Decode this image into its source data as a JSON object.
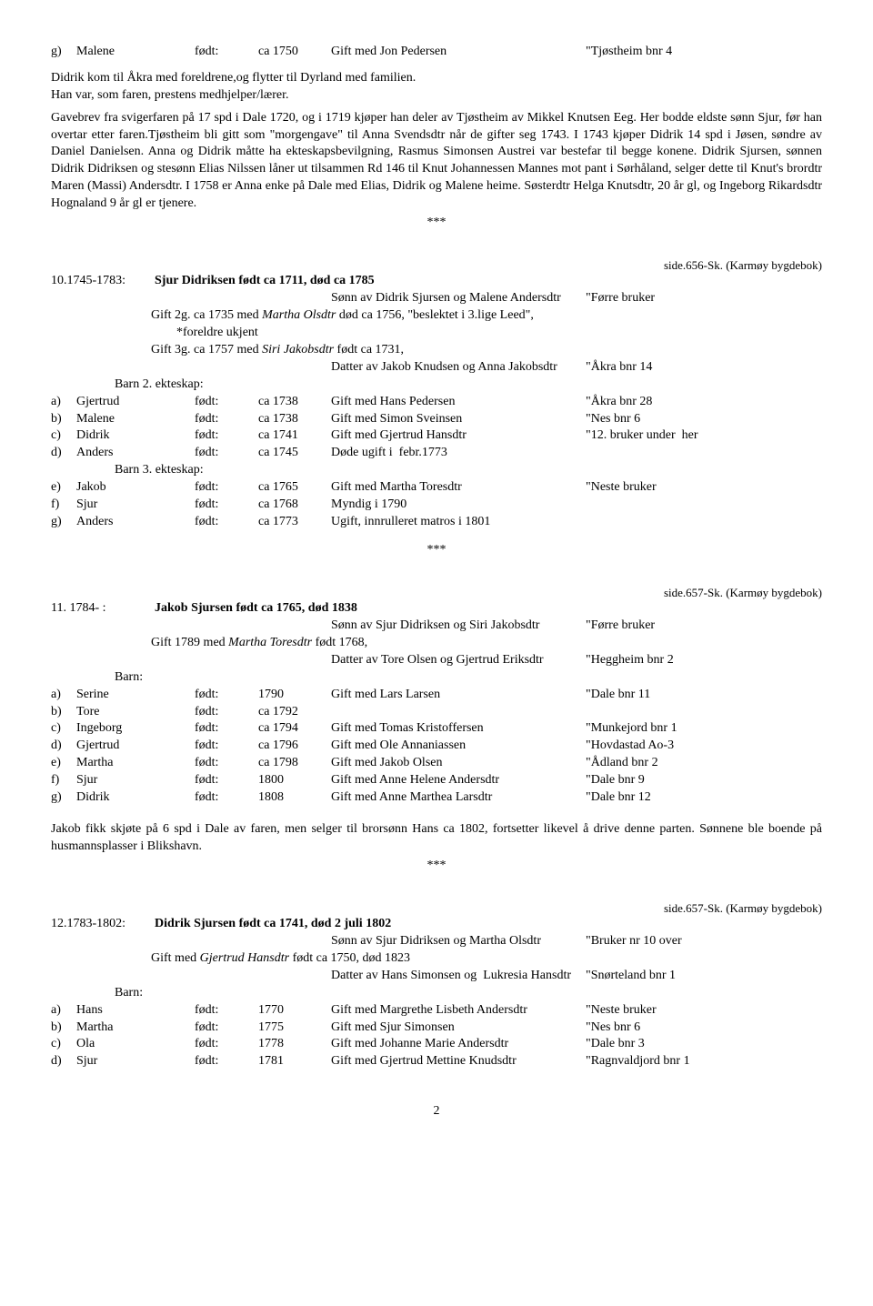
{
  "entry_g_top": {
    "letter": "g)",
    "name": "Malene",
    "born_lbl": "født:",
    "born": "ca 1750",
    "marriage": "Gift med Jon Pedersen",
    "place": "\"Tjøstheim bnr 4"
  },
  "para1_a": "Didrik kom til Åkra med foreldrene,og flytter til Dyrland med familien.",
  "para1_b": "Han var, som faren, prestens medhjelper/lærer.",
  "para2": "Gavebrev fra svigerfaren på 17 spd i Dale 1720, og i 1719 kjøper han deler av Tjøstheim av Mikkel Knutsen Eeg. Her bodde eldste sønn Sjur, før han overtar etter faren.Tjøstheim bli gitt som \"morgengave\" til Anna Svendsdtr når de gifter seg 1743. I 1743 kjøper Didrik 14 spd i Jøsen, søndre av Daniel Danielsen. Anna og Didrik måtte ha ekteskapsbevilgning, Rasmus Simonsen Austrei var bestefar til begge konene. Didrik Sjursen, sønnen Didrik Didriksen og stesønn Elias Nilssen låner ut tilsammen Rd 146 til Knut Johannessen Mannes mot pant i Sørhåland, selger dette til Knut's brordtr Maren (Massi) Andersdtr. I 1758 er Anna enke på Dale med Elias, Didrik og Malene heime. Søsterdtr Helga Knutsdtr, 20 år gl, og Ingeborg Rikardsdtr Hognaland 9 år gl er tjenere.",
  "stars": "***",
  "src10": "side.656-Sk. (Karmøy bygdebok)",
  "e10": {
    "idx": "10.1745-1783:",
    "title": "Sjur Didriksen født ca 1711, død ca 1785",
    "l1": "Sønn av Didrik Sjursen og Malene Andersdtr",
    "l1q": "\"Førre bruker",
    "l2a": "Gift 2g. ca 1735 med ",
    "l2b": "Martha Olsdtr",
    "l2c": " død ca 1756, \"beslektet i 3.lige Leed\",",
    "l3": "*foreldre ukjent",
    "l4a": "Gift 3g. ca 1757 med ",
    "l4b": "Siri Jakobsdtr",
    "l4c": " født ca 1731,",
    "l5": "Datter av Jakob Knudsen og Anna Jakobsdtr",
    "l5q": "\"Åkra bnr 14",
    "barn2": "Barn 2. ekteskap:",
    "barn3": "Barn 3. ekteskap:"
  },
  "e10_children2": [
    {
      "l": "a)",
      "n": "Gjertrud",
      "bl": "født:",
      "b": "ca 1738",
      "m": "Gift med Hans Pedersen",
      "q": "\"Åkra bnr 28"
    },
    {
      "l": "b)",
      "n": "Malene",
      "bl": "født:",
      "b": "ca 1738",
      "m": "Gift med Simon Sveinsen",
      "q": "\"Nes bnr 6"
    },
    {
      "l": "c)",
      "n": "Didrik",
      "bl": "født:",
      "b": "ca 1741",
      "m": "Gift med Gjertrud Hansdtr",
      "q": "\"12. bruker under  her"
    },
    {
      "l": "d)",
      "n": "Anders",
      "bl": "født:",
      "b": "ca 1745",
      "m": "Døde ugift i  febr.1773",
      "q": ""
    }
  ],
  "e10_children3": [
    {
      "l": "e)",
      "n": "Jakob",
      "bl": "født:",
      "b": "ca 1765",
      "m": "Gift med Martha Toresdtr",
      "q": "\"Neste bruker"
    },
    {
      "l": "f)",
      "n": "Sjur",
      "bl": "født:",
      "b": "ca 1768",
      "m": "Myndig i 1790",
      "q": ""
    },
    {
      "l": "g)",
      "n": "Anders",
      "bl": "født:",
      "b": "ca 1773",
      "m": "Ugift, innrulleret matros i 1801",
      "q": ""
    }
  ],
  "src11": "side.657-Sk. (Karmøy bygdebok)",
  "e11": {
    "idx": "11. 1784-    :",
    "title": "Jakob Sjursen født ca 1765, død 1838",
    "l1": "Sønn av Sjur Didriksen og Siri Jakobsdtr",
    "l1q": "\"Førre bruker",
    "l2a": "Gift 1789 med ",
    "l2b": "Martha Toresdtr",
    "l2c": " født 1768,",
    "l3": "Datter av Tore Olsen og Gjertrud Eriksdtr",
    "l3q": "\"Heggheim bnr 2",
    "barn": "Barn:"
  },
  "e11_children": [
    {
      "l": "a)",
      "n": "Serine",
      "bl": "født:",
      "b": "1790",
      "m": "Gift med Lars Larsen",
      "q": "\"Dale bnr 11"
    },
    {
      "l": "b)",
      "n": "Tore",
      "bl": "født:",
      "b": "ca 1792",
      "m": "",
      "q": ""
    },
    {
      "l": "c)",
      "n": "Ingeborg",
      "bl": "født:",
      "b": "ca 1794",
      "m": "Gift med Tomas Kristoffersen",
      "q": "\"Munkejord bnr 1"
    },
    {
      "l": "d)",
      "n": "Gjertrud",
      "bl": "født:",
      "b": "ca 1796",
      "m": "Gift med Ole Annaniassen",
      "q": "\"Hovdastad Ao-3"
    },
    {
      "l": "e)",
      "n": "Martha",
      "bl": "født:",
      "b": "ca 1798",
      "m": "Gift med Jakob Olsen",
      "q": "\"Ådland bnr 2"
    },
    {
      "l": "f)",
      "n": "Sjur",
      "bl": "født:",
      "b": "1800",
      "m": "Gift med Anne Helene Andersdtr",
      "q": "\"Dale bnr 9"
    },
    {
      "l": "g)",
      "n": "Didrik",
      "bl": "født:",
      "b": "1808",
      "m": "Gift med Anne Marthea Larsdtr",
      "q": "\"Dale bnr 12"
    }
  ],
  "para11": "Jakob fikk skjøte på 6 spd i Dale av faren, men selger til brorsønn Hans ca 1802, fortsetter likevel å drive denne parten. Sønnene ble boende på husmannsplasser i Blikshavn.",
  "src12": "side.657-Sk. (Karmøy bygdebok)",
  "e12": {
    "idx": "12.1783-1802:",
    "title": "Didrik Sjursen født ca 1741, død 2 juli 1802",
    "l1": "Sønn av Sjur Didriksen og Martha Olsdtr",
    "l1q": "\"Bruker nr 10 over",
    "l2a": "Gift med ",
    "l2b": "Gjertrud Hansdtr",
    "l2c": " født ca 1750, død 1823",
    "l3": "Datter av Hans Simonsen og  Lukresia Hansdtr",
    "l3q": "\"Snørteland bnr 1",
    "barn": "Barn:"
  },
  "e12_children": [
    {
      "l": "a)",
      "n": "Hans",
      "bl": "født:",
      "b": "1770",
      "m": "Gift med Margrethe Lisbeth Andersdtr",
      "q": "\"Neste bruker"
    },
    {
      "l": "b)",
      "n": "Martha",
      "bl": "født:",
      "b": "1775",
      "m": "Gift med Sjur Simonsen",
      "q": "\"Nes bnr 6"
    },
    {
      "l": "c)",
      "n": "Ola",
      "bl": "født:",
      "b": "1778",
      "m": "Gift med Johanne Marie Andersdtr",
      "q": "\"Dale bnr 3"
    },
    {
      "l": "d)",
      "n": "Sjur",
      "bl": "født:",
      "b": "1781",
      "m": "Gift med Gjertrud Mettine Knudsdtr",
      "q": "\"Ragnvaldjord bnr 1"
    }
  ],
  "pagenum": "2"
}
